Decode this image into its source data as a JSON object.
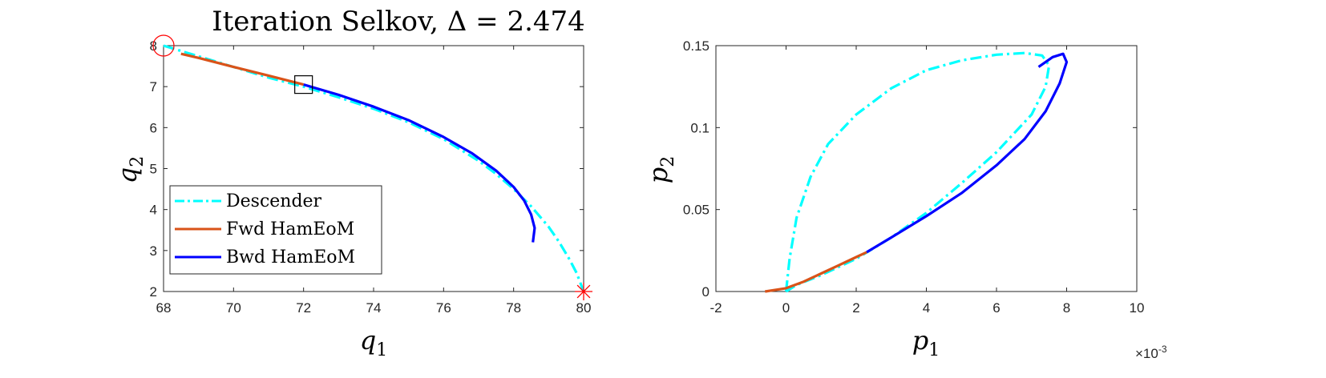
{
  "chart_data": [
    {
      "type": "line",
      "title": "Iteration Selkov, Δ = 2.474",
      "xlabel": "q",
      "xlabel_sub": "1",
      "ylabel": "q",
      "ylabel_sub": "2",
      "xlim": [
        68,
        80
      ],
      "ylim": [
        2,
        8
      ],
      "xticks": [
        68,
        70,
        72,
        74,
        76,
        78,
        80
      ],
      "yticks": [
        2,
        3,
        4,
        5,
        6,
        7,
        8
      ],
      "legend_position": "bottom-left",
      "series": [
        {
          "name": "Descender",
          "color": "#00FFFF",
          "dash": "dashdot",
          "points": [
            [
              68.0,
              8.0
            ],
            [
              69.0,
              7.74
            ],
            [
              70.0,
              7.48
            ],
            [
              71.0,
              7.22
            ],
            [
              72.0,
              7.0
            ],
            [
              73.0,
              6.74
            ],
            [
              74.0,
              6.46
            ],
            [
              75.0,
              6.13
            ],
            [
              76.0,
              5.72
            ],
            [
              77.0,
              5.19
            ],
            [
              77.5,
              4.87
            ],
            [
              78.0,
              4.5
            ],
            [
              78.5,
              4.08
            ],
            [
              79.0,
              3.58
            ],
            [
              79.3,
              3.21
            ],
            [
              79.6,
              2.78
            ],
            [
              79.8,
              2.45
            ],
            [
              80.0,
              2.0
            ]
          ]
        },
        {
          "name": "Fwd HamEoM",
          "color": "#D95319",
          "dash": "solid",
          "points": [
            [
              68.5,
              7.8
            ],
            [
              69.0,
              7.7
            ],
            [
              70.0,
              7.48
            ],
            [
              71.0,
              7.27
            ],
            [
              72.0,
              7.05
            ]
          ]
        },
        {
          "name": "Bwd HamEoM",
          "color": "#0000FF",
          "dash": "solid",
          "points": [
            [
              72.0,
              7.05
            ],
            [
              73.0,
              6.8
            ],
            [
              74.0,
              6.51
            ],
            [
              75.0,
              6.18
            ],
            [
              76.0,
              5.77
            ],
            [
              76.8,
              5.38
            ],
            [
              77.5,
              4.95
            ],
            [
              78.0,
              4.55
            ],
            [
              78.3,
              4.22
            ],
            [
              78.5,
              3.88
            ],
            [
              78.6,
              3.55
            ],
            [
              78.55,
              3.2
            ]
          ]
        }
      ],
      "markers": [
        {
          "name": "start-circle",
          "shape": "circle",
          "color": "#FF0000",
          "x": 68.0,
          "y": 8.0
        },
        {
          "name": "end-star",
          "shape": "asterisk",
          "color": "#FF0000",
          "x": 80.0,
          "y": 2.0
        },
        {
          "name": "junction-square",
          "shape": "square",
          "color": "#000000",
          "x": 72.0,
          "y": 7.05
        }
      ]
    },
    {
      "type": "line",
      "title": "",
      "xlabel": "p",
      "xlabel_sub": "1",
      "ylabel": "p",
      "ylabel_sub": "2",
      "xlim": [
        -2,
        10
      ],
      "ylim": [
        0,
        0.15
      ],
      "xticks": [
        -2,
        0,
        2,
        4,
        6,
        8,
        10
      ],
      "yticks": [
        0,
        0.05,
        0.1,
        0.15
      ],
      "ytick_labels": [
        "0",
        "0.05",
        "0.1",
        "0.15"
      ],
      "x_multiplier": "×10",
      "x_multiplier_exp": "-3",
      "series": [
        {
          "name": "Descender",
          "color": "#00FFFF",
          "dash": "dashdot",
          "points": [
            [
              0.0,
              0.0
            ],
            [
              0.1,
              0.02
            ],
            [
              0.3,
              0.045
            ],
            [
              0.7,
              0.07
            ],
            [
              1.2,
              0.09
            ],
            [
              2.0,
              0.108
            ],
            [
              3.0,
              0.124
            ],
            [
              4.0,
              0.135
            ],
            [
              5.0,
              0.141
            ],
            [
              6.0,
              0.1445
            ],
            [
              6.8,
              0.1455
            ],
            [
              7.3,
              0.144
            ],
            [
              7.5,
              0.138
            ],
            [
              7.4,
              0.125
            ],
            [
              7.0,
              0.108
            ],
            [
              6.0,
              0.085
            ],
            [
              5.0,
              0.066
            ],
            [
              4.0,
              0.048
            ],
            [
              3.0,
              0.033
            ],
            [
              2.0,
              0.02
            ],
            [
              1.0,
              0.01
            ],
            [
              0.3,
              0.004
            ],
            [
              0.0,
              0.0
            ]
          ]
        },
        {
          "name": "Fwd HamEoM",
          "color": "#D95319",
          "dash": "solid",
          "points": [
            [
              -0.6,
              0.0
            ],
            [
              0.0,
              0.002
            ],
            [
              0.5,
              0.006
            ],
            [
              1.0,
              0.011
            ],
            [
              1.5,
              0.016
            ],
            [
              2.0,
              0.021
            ],
            [
              2.3,
              0.024
            ]
          ]
        },
        {
          "name": "Bwd HamEoM",
          "color": "#0000FF",
          "dash": "solid",
          "points": [
            [
              2.3,
              0.024
            ],
            [
              3.0,
              0.033
            ],
            [
              4.0,
              0.046
            ],
            [
              5.0,
              0.06
            ],
            [
              6.0,
              0.077
            ],
            [
              6.8,
              0.093
            ],
            [
              7.4,
              0.11
            ],
            [
              7.8,
              0.127
            ],
            [
              8.0,
              0.14
            ],
            [
              7.9,
              0.145
            ],
            [
              7.6,
              0.143
            ],
            [
              7.2,
              0.137
            ]
          ]
        }
      ]
    }
  ]
}
